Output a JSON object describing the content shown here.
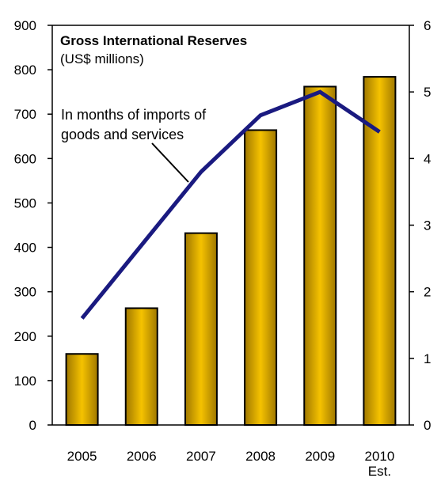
{
  "chart_data": {
    "type": "bar",
    "title": "Gross International Reserves",
    "subtitle": "(US$ millions)",
    "categories": [
      "2005",
      "2006",
      "2007",
      "2008",
      "2009",
      "2010"
    ],
    "category_sublabels": [
      "",
      "",
      "",
      "",
      "",
      "Est."
    ],
    "series": [
      {
        "type": "bar",
        "axis": "left",
        "values": [
          160,
          263,
          432,
          664,
          762,
          784
        ],
        "color": "#F5C200"
      },
      {
        "type": "line",
        "axis": "right",
        "name": "In months of imports of goods and services",
        "values": [
          1.6,
          2.7,
          3.8,
          4.65,
          5.0,
          4.4
        ],
        "color": "#1A1A80"
      }
    ],
    "y_left": {
      "ylim": [
        0,
        900
      ],
      "ticks": [
        "0",
        "100",
        "200",
        "300",
        "400",
        "500",
        "600",
        "700",
        "800",
        "900"
      ]
    },
    "y_right": {
      "ylim": [
        0,
        6
      ],
      "ticks": [
        "0",
        "1",
        "2",
        "3",
        "4",
        "5",
        "6"
      ]
    },
    "annotation": {
      "line1": "In months of imports of",
      "line2": "goods and services"
    },
    "grid": false,
    "colors": {
      "bar_light": "#FFF2A0",
      "bar_mid": "#F5C200",
      "bar_dark": "#A07800",
      "line": "#1A1A80",
      "axis": "#000000"
    }
  }
}
